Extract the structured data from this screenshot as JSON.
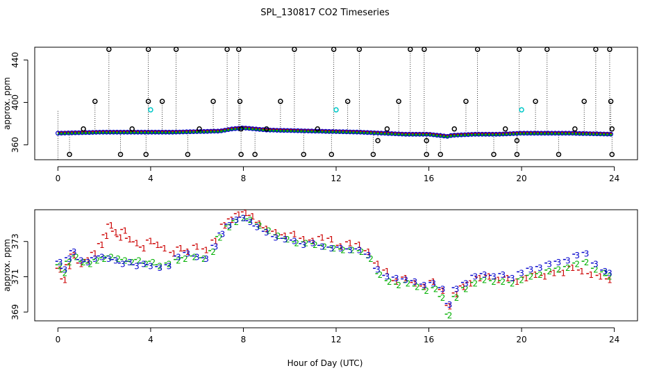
{
  "title": "SPL_130817  CO2 Timeseries",
  "xlabel": "Hour of Day (UTC)",
  "colors": {
    "series1": "#cc0000",
    "series2": "#00b000",
    "series3": "#0000cc",
    "outlier": "#000000",
    "cyan": "#00c8c8"
  },
  "chart_data": [
    {
      "type": "scatter",
      "name": "top-panel",
      "title": "SPL_130817  CO2 Timeseries",
      "xlabel": "",
      "ylabel": "approx. ppm",
      "xlim": [
        -1,
        25
      ],
      "ylim": [
        346,
        452
      ],
      "xticks": [
        0,
        4,
        8,
        12,
        16,
        20,
        24
      ],
      "yticks": [
        360,
        400,
        440
      ],
      "baseline": [
        [
          0,
          371
        ],
        [
          1,
          371.5
        ],
        [
          2,
          372
        ],
        [
          3,
          372
        ],
        [
          4,
          372
        ],
        [
          5,
          372
        ],
        [
          6,
          372.5
        ],
        [
          7,
          373
        ],
        [
          7.5,
          375
        ],
        [
          8,
          376
        ],
        [
          9,
          374
        ],
        [
          10,
          373.5
        ],
        [
          11,
          373
        ],
        [
          12,
          372.5
        ],
        [
          13,
          372
        ],
        [
          14,
          371
        ],
        [
          15,
          370
        ],
        [
          16,
          370
        ],
        [
          16.8,
          368
        ],
        [
          17,
          369
        ],
        [
          18,
          370
        ],
        [
          19,
          370
        ],
        [
          20,
          371
        ],
        [
          21,
          371
        ],
        [
          22,
          371
        ],
        [
          23,
          370.5
        ],
        [
          24,
          370
        ]
      ],
      "outliers_high": [
        [
          2.2,
          450
        ],
        [
          3.9,
          450
        ],
        [
          5.1,
          450
        ],
        [
          7.3,
          450
        ],
        [
          7.8,
          450
        ],
        [
          10.2,
          450
        ],
        [
          11.9,
          450
        ],
        [
          13.0,
          450
        ],
        [
          15.2,
          450
        ],
        [
          15.8,
          450
        ],
        [
          18.1,
          450
        ],
        [
          19.9,
          450
        ],
        [
          21.1,
          450
        ],
        [
          23.2,
          450
        ],
        [
          23.8,
          450
        ],
        [
          1.6,
          401
        ],
        [
          3.9,
          401
        ],
        [
          4.5,
          401
        ],
        [
          6.7,
          401
        ],
        [
          7.85,
          401
        ],
        [
          9.6,
          401
        ],
        [
          12.5,
          401
        ],
        [
          14.7,
          401
        ],
        [
          17.6,
          401
        ],
        [
          20.6,
          401
        ],
        [
          22.7,
          401
        ],
        [
          23.85,
          401
        ]
      ],
      "outliers_low": [
        [
          0.5,
          351
        ],
        [
          2.7,
          351
        ],
        [
          3.8,
          351
        ],
        [
          5.6,
          351
        ],
        [
          7.9,
          351
        ],
        [
          8.5,
          351
        ],
        [
          10.6,
          351
        ],
        [
          11.8,
          351
        ],
        [
          13.6,
          351
        ],
        [
          15.9,
          351
        ],
        [
          16.5,
          351
        ],
        [
          18.8,
          351
        ],
        [
          19.8,
          351
        ],
        [
          21.6,
          351
        ],
        [
          23.9,
          351
        ],
        [
          13.8,
          364
        ],
        [
          15.9,
          364
        ],
        [
          19.8,
          364
        ]
      ],
      "outliers_mid": [
        [
          1.1,
          375
        ],
        [
          3.2,
          375
        ],
        [
          6.1,
          375
        ],
        [
          7.9,
          375
        ],
        [
          9.0,
          375
        ],
        [
          11.2,
          375
        ],
        [
          14.2,
          375
        ],
        [
          17.1,
          375
        ],
        [
          19.3,
          375
        ],
        [
          22.3,
          375
        ],
        [
          23.9,
          375
        ]
      ],
      "cyan_points": [
        [
          4.0,
          393
        ],
        [
          12.0,
          393
        ],
        [
          20.0,
          393
        ]
      ]
    },
    {
      "type": "scatter",
      "name": "bottom-panel",
      "xlabel": "Hour of Day (UTC)",
      "ylabel": "approx. ppm",
      "xlim": [
        -1,
        25
      ],
      "ylim": [
        368.5,
        374.8
      ],
      "xticks": [
        0,
        4,
        8,
        12,
        16,
        20,
        24
      ],
      "yticks": [
        369,
        371,
        373
      ],
      "series": [
        {
          "name": "1",
          "label": "1",
          "color": "#cc0000",
          "points": [
            [
              0.1,
              371.4
            ],
            [
              0.3,
              370.8
            ],
            [
              0.5,
              371.6
            ],
            [
              0.7,
              372.2
            ],
            [
              1.0,
              371.7
            ],
            [
              1.3,
              371.9
            ],
            [
              1.6,
              372.3
            ],
            [
              1.9,
              372.8
            ],
            [
              2.1,
              373.3
            ],
            [
              2.3,
              373.9
            ],
            [
              2.5,
              373.5
            ],
            [
              2.7,
              373.2
            ],
            [
              2.9,
              373.6
            ],
            [
              3.1,
              373.1
            ],
            [
              3.4,
              372.9
            ],
            [
              3.7,
              372.6
            ],
            [
              4.0,
              373.0
            ],
            [
              4.3,
              372.8
            ],
            [
              4.6,
              372.6
            ],
            [
              5.0,
              372.3
            ],
            [
              5.3,
              372.6
            ],
            [
              5.6,
              372.4
            ],
            [
              6.0,
              372.7
            ],
            [
              6.4,
              372.5
            ],
            [
              6.8,
              373.0
            ],
            [
              7.2,
              373.9
            ],
            [
              7.5,
              374.2
            ],
            [
              7.8,
              374.5
            ],
            [
              8.1,
              374.6
            ],
            [
              8.4,
              374.4
            ],
            [
              8.7,
              374.0
            ],
            [
              9.0,
              373.7
            ],
            [
              9.4,
              373.5
            ],
            [
              9.8,
              373.3
            ],
            [
              10.2,
              373.4
            ],
            [
              10.6,
              373.1
            ],
            [
              11.0,
              373.0
            ],
            [
              11.4,
              373.2
            ],
            [
              11.8,
              373.1
            ],
            [
              12.2,
              372.7
            ],
            [
              12.6,
              372.9
            ],
            [
              13.0,
              372.8
            ],
            [
              13.4,
              372.4
            ],
            [
              13.8,
              371.7
            ],
            [
              14.2,
              371.3
            ],
            [
              14.6,
              370.7
            ],
            [
              15.0,
              370.9
            ],
            [
              15.4,
              370.6
            ],
            [
              15.8,
              370.4
            ],
            [
              16.2,
              370.7
            ],
            [
              16.6,
              370.2
            ],
            [
              16.9,
              369.3
            ],
            [
              17.2,
              370.0
            ],
            [
              17.5,
              370.4
            ],
            [
              17.8,
              370.6
            ],
            [
              18.2,
              370.9
            ],
            [
              18.6,
              371.0
            ],
            [
              19.0,
              370.8
            ],
            [
              19.4,
              370.9
            ],
            [
              19.8,
              370.7
            ],
            [
              20.2,
              370.9
            ],
            [
              20.6,
              371.1
            ],
            [
              21.0,
              371.0
            ],
            [
              21.4,
              371.2
            ],
            [
              21.8,
              371.2
            ],
            [
              22.2,
              371.5
            ],
            [
              22.6,
              371.3
            ],
            [
              23.0,
              371.1
            ],
            [
              23.4,
              371.0
            ],
            [
              23.8,
              370.8
            ]
          ]
        },
        {
          "name": "2",
          "label": "2",
          "color": "#00b000",
          "points": [
            [
              0.1,
              371.6
            ],
            [
              0.3,
              371.2
            ],
            [
              0.5,
              371.8
            ],
            [
              0.8,
              372.1
            ],
            [
              1.1,
              371.8
            ],
            [
              1.4,
              371.7
            ],
            [
              1.7,
              371.9
            ],
            [
              2.0,
              372.0
            ],
            [
              2.3,
              372.1
            ],
            [
              2.6,
              372.0
            ],
            [
              2.9,
              371.9
            ],
            [
              3.2,
              371.8
            ],
            [
              3.5,
              371.9
            ],
            [
              3.8,
              371.7
            ],
            [
              4.1,
              371.8
            ],
            [
              4.4,
              371.6
            ],
            [
              4.8,
              371.7
            ],
            [
              5.2,
              371.9
            ],
            [
              5.5,
              372.0
            ],
            [
              5.9,
              372.1
            ],
            [
              6.3,
              372.0
            ],
            [
              6.7,
              372.4
            ],
            [
              7.0,
              373.2
            ],
            [
              7.4,
              373.8
            ],
            [
              7.7,
              374.1
            ],
            [
              8.0,
              374.3
            ],
            [
              8.3,
              374.2
            ],
            [
              8.7,
              373.9
            ],
            [
              9.1,
              373.6
            ],
            [
              9.5,
              373.3
            ],
            [
              9.9,
              373.1
            ],
            [
              10.3,
              372.9
            ],
            [
              10.7,
              372.9
            ],
            [
              11.1,
              372.8
            ],
            [
              11.5,
              372.7
            ],
            [
              11.9,
              372.6
            ],
            [
              12.3,
              372.5
            ],
            [
              12.7,
              372.5
            ],
            [
              13.1,
              372.4
            ],
            [
              13.5,
              372.0
            ],
            [
              13.9,
              371.1
            ],
            [
              14.3,
              370.7
            ],
            [
              14.7,
              370.5
            ],
            [
              15.1,
              370.6
            ],
            [
              15.5,
              370.4
            ],
            [
              15.9,
              370.2
            ],
            [
              16.3,
              370.3
            ],
            [
              16.6,
              369.8
            ],
            [
              16.9,
              368.8
            ],
            [
              17.2,
              369.8
            ],
            [
              17.6,
              370.3
            ],
            [
              18.0,
              370.6
            ],
            [
              18.4,
              370.8
            ],
            [
              18.8,
              370.7
            ],
            [
              19.2,
              370.7
            ],
            [
              19.6,
              370.6
            ],
            [
              20.0,
              370.8
            ],
            [
              20.4,
              371.0
            ],
            [
              20.8,
              371.1
            ],
            [
              21.2,
              371.3
            ],
            [
              21.6,
              371.4
            ],
            [
              22.0,
              371.5
            ],
            [
              22.4,
              371.7
            ],
            [
              22.8,
              371.8
            ],
            [
              23.2,
              371.4
            ],
            [
              23.6,
              371.2
            ],
            [
              23.8,
              371.0
            ]
          ]
        },
        {
          "name": "3",
          "label": "3",
          "color": "#0000cc",
          "points": [
            [
              0.1,
              371.8
            ],
            [
              0.3,
              371.4
            ],
            [
              0.5,
              372.0
            ],
            [
              0.7,
              372.4
            ],
            [
              1.0,
              371.9
            ],
            [
              1.3,
              371.8
            ],
            [
              1.6,
              372.0
            ],
            [
              1.9,
              372.1
            ],
            [
              2.2,
              372.0
            ],
            [
              2.5,
              371.9
            ],
            [
              2.8,
              371.7
            ],
            [
              3.1,
              371.8
            ],
            [
              3.4,
              371.6
            ],
            [
              3.7,
              371.7
            ],
            [
              4.0,
              371.6
            ],
            [
              4.4,
              371.5
            ],
            [
              4.8,
              371.6
            ],
            [
              5.2,
              372.1
            ],
            [
              5.6,
              372.3
            ],
            [
              6.0,
              372.1
            ],
            [
              6.4,
              372.0
            ],
            [
              6.8,
              372.7
            ],
            [
              7.1,
              373.4
            ],
            [
              7.4,
              373.9
            ],
            [
              7.7,
              374.2
            ],
            [
              8.0,
              374.3
            ],
            [
              8.3,
              374.1
            ],
            [
              8.6,
              373.8
            ],
            [
              9.0,
              373.5
            ],
            [
              9.4,
              373.2
            ],
            [
              9.8,
              373.1
            ],
            [
              10.2,
              373.0
            ],
            [
              10.6,
              372.8
            ],
            [
              11.0,
              372.9
            ],
            [
              11.4,
              372.7
            ],
            [
              11.8,
              372.6
            ],
            [
              12.2,
              372.6
            ],
            [
              12.6,
              372.5
            ],
            [
              13.0,
              372.5
            ],
            [
              13.4,
              372.2
            ],
            [
              13.8,
              371.4
            ],
            [
              14.2,
              371.0
            ],
            [
              14.6,
              370.9
            ],
            [
              15.0,
              370.8
            ],
            [
              15.4,
              370.7
            ],
            [
              15.8,
              370.5
            ],
            [
              16.2,
              370.6
            ],
            [
              16.6,
              370.3
            ],
            [
              16.9,
              369.4
            ],
            [
              17.2,
              370.3
            ],
            [
              17.6,
              370.6
            ],
            [
              18.0,
              371.0
            ],
            [
              18.4,
              371.1
            ],
            [
              18.8,
              371.0
            ],
            [
              19.2,
              371.1
            ],
            [
              19.6,
              370.9
            ],
            [
              20.0,
              371.2
            ],
            [
              20.4,
              371.4
            ],
            [
              20.8,
              371.5
            ],
            [
              21.2,
              371.7
            ],
            [
              21.6,
              371.8
            ],
            [
              22.0,
              371.9
            ],
            [
              22.4,
              372.2
            ],
            [
              22.8,
              372.3
            ],
            [
              23.2,
              371.7
            ],
            [
              23.6,
              371.3
            ],
            [
              23.8,
              371.2
            ]
          ]
        }
      ]
    }
  ]
}
